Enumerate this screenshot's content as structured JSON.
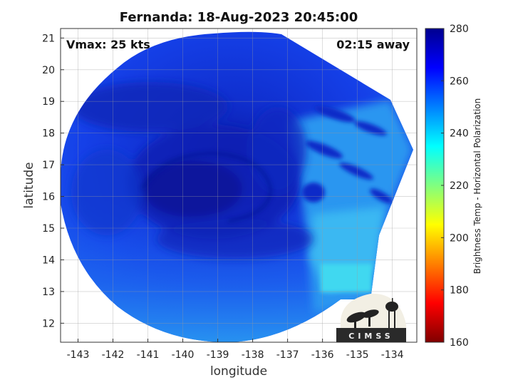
{
  "title": "Fernanda: 18-Aug-2023 20:45:00",
  "annotations": {
    "vmax": "Vmax: 25 kts",
    "away": "02:15 away"
  },
  "axes": {
    "xlabel": "longitude",
    "ylabel": "latitude",
    "xlim": [
      -143.5,
      -133.3
    ],
    "ylim": [
      11.4,
      21.3
    ],
    "xticks": [
      -143,
      -142,
      -141,
      -140,
      -139,
      -138,
      -137,
      -136,
      -135,
      -134
    ],
    "yticks": [
      12,
      13,
      14,
      15,
      16,
      17,
      18,
      19,
      20,
      21
    ],
    "grid": true
  },
  "colorbar": {
    "label": "Brightness Temp - Horizontal Polarization",
    "range": [
      160,
      280
    ],
    "ticks": [
      160,
      180,
      200,
      220,
      240,
      260,
      280
    ],
    "colormap": "jet",
    "colors": [
      "#800000",
      "#ff0000",
      "#ff8000",
      "#ffff00",
      "#80ff80",
      "#00ffff",
      "#0080ff",
      "#0000ff",
      "#00008f"
    ]
  },
  "map": {
    "type": "microwave brightness temperature swath",
    "storm_center": {
      "lon": -139.5,
      "lat": 16.3
    },
    "colors": {
      "deep": "#0a1aa8",
      "main": "#1238e0",
      "mid": "#1a5ef0",
      "light": "#2a9cf0",
      "cyan": "#3fd8f0"
    }
  },
  "logo": {
    "text": "CIMSS"
  }
}
